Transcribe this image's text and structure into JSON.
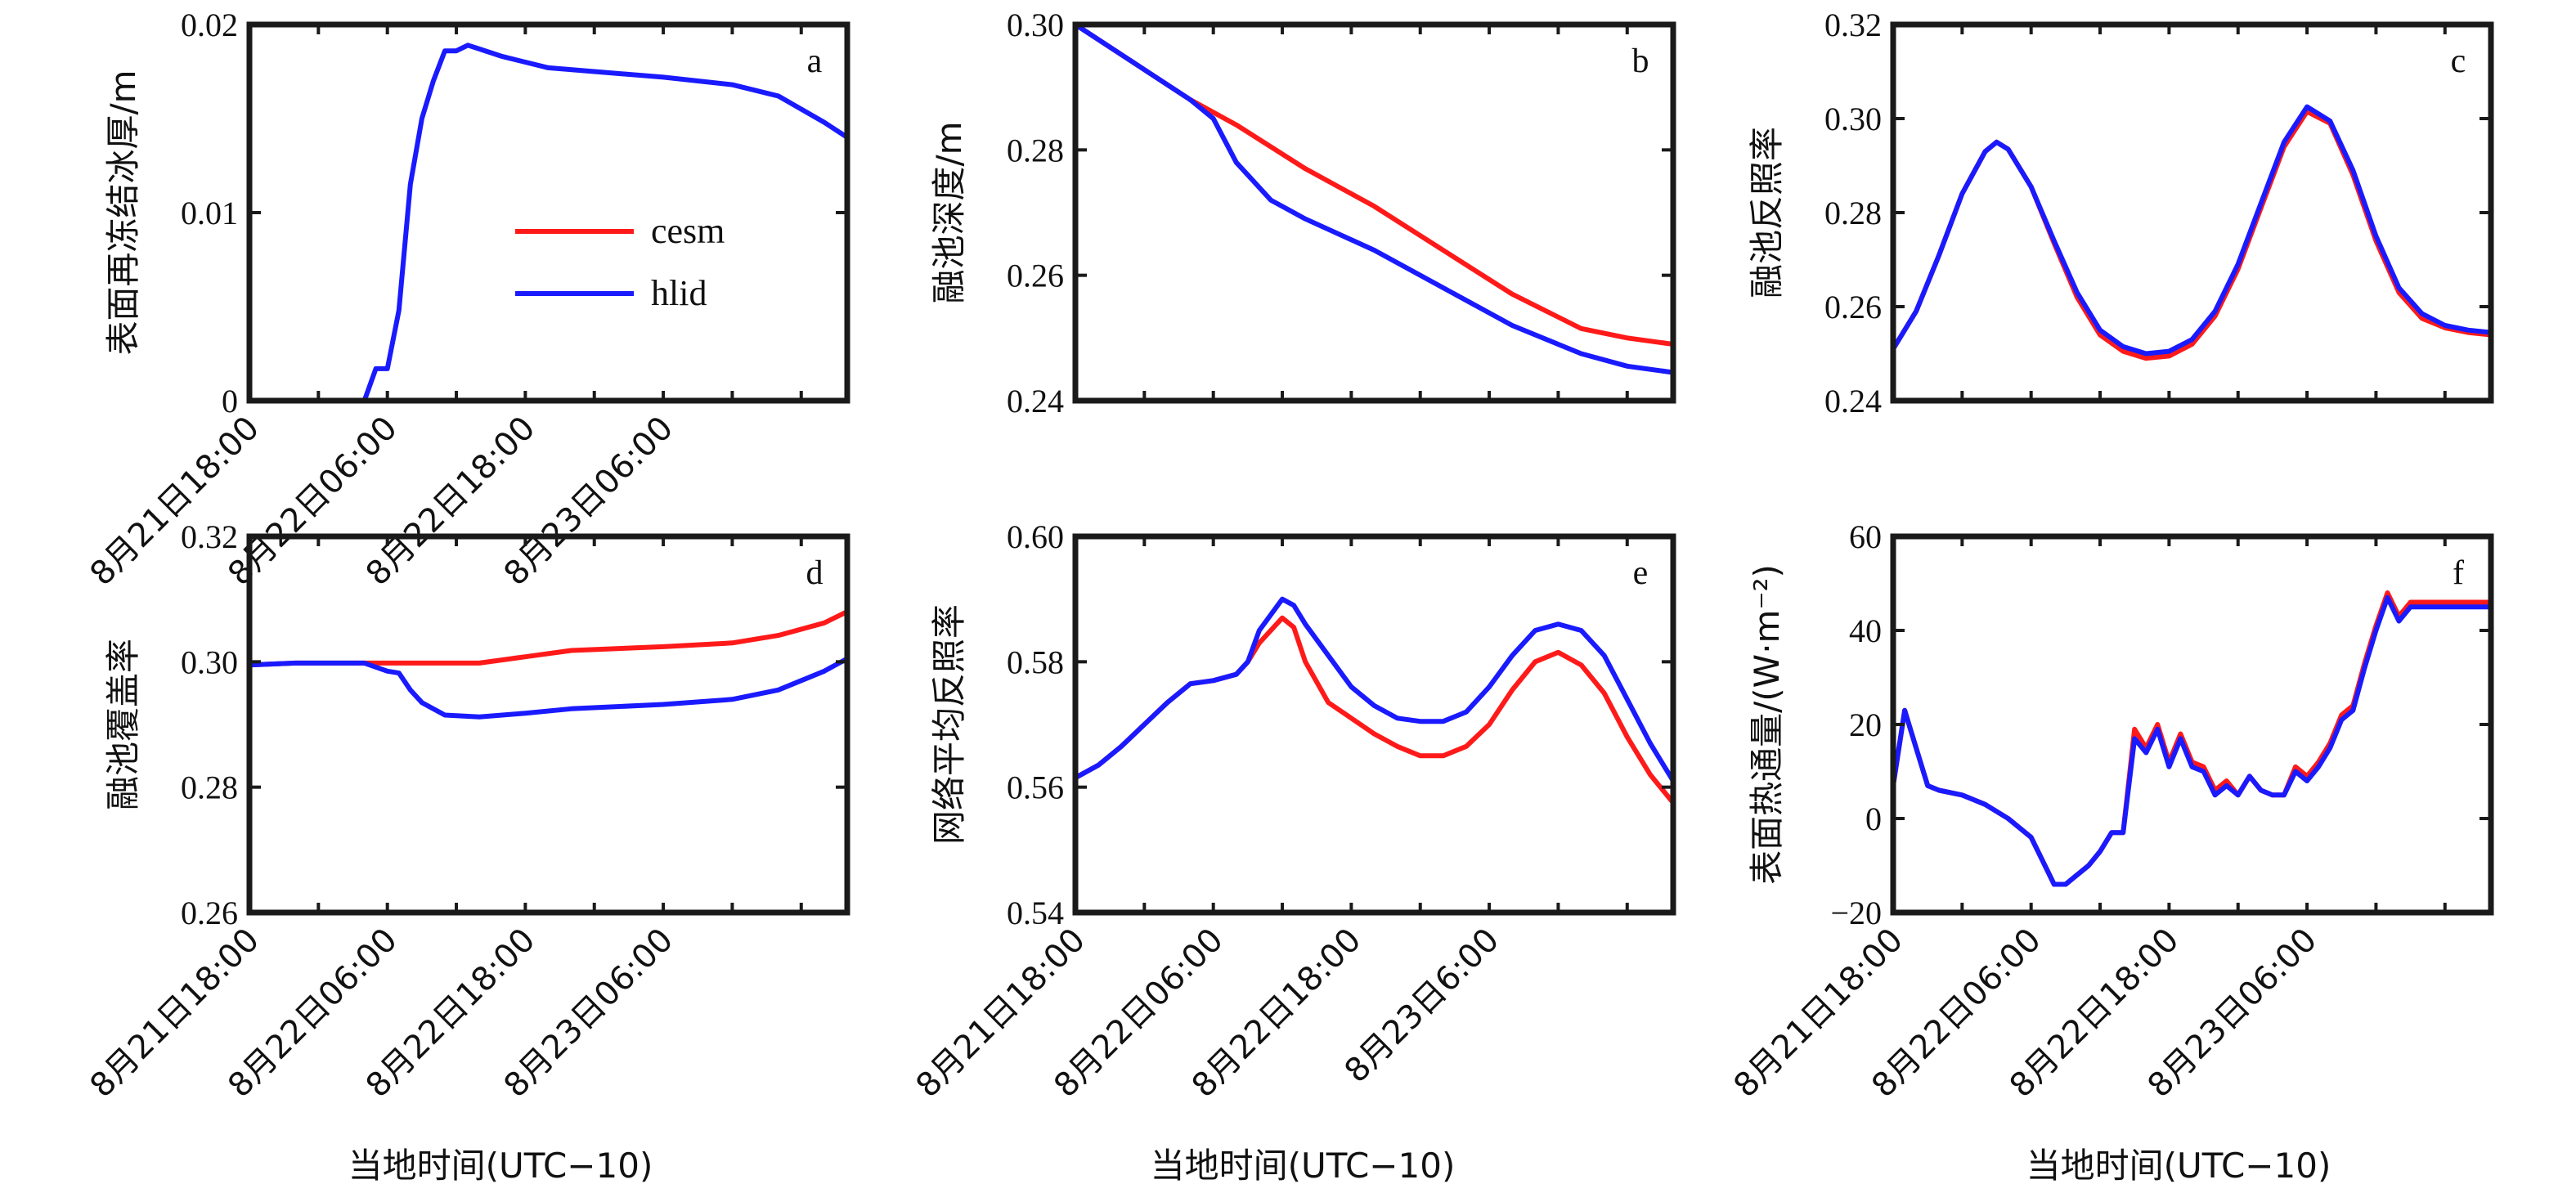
{
  "colors": {
    "cesm": "#ff1a1a",
    "hlid": "#1a1aff"
  },
  "xlabel": "当地时间(UTC−10)",
  "legend": {
    "cesm": "cesm",
    "hlid": "hlid"
  },
  "chart_data": [
    {
      "type": "line",
      "panel": "a",
      "ylabel": "表面再冻结冰厚/m",
      "ylim": [
        0,
        0.02
      ],
      "yticks": [
        "0",
        "0.01",
        "0.02"
      ],
      "ytick_values": [
        0,
        0.01,
        0.02
      ],
      "xlim": [
        0,
        52
      ],
      "xtick_values": [
        0,
        12,
        24,
        36
      ],
      "xticks": [
        "8月21日18:00",
        "8月22日06:00",
        "8月22日18:00",
        "8月23日06:00"
      ],
      "legend": true,
      "series": [
        {
          "name": "cesm",
          "x": [
            0,
            52
          ],
          "y": [
            0,
            0
          ]
        },
        {
          "name": "hlid",
          "x": [
            0,
            10,
            11,
            12,
            13,
            14,
            15,
            16,
            17,
            18,
            19,
            20,
            22,
            26,
            30,
            36,
            42,
            46,
            48,
            50,
            52
          ],
          "y": [
            0,
            0,
            0.0017,
            0.0017,
            0.0048,
            0.0115,
            0.015,
            0.017,
            0.0186,
            0.0186,
            0.0189,
            0.0187,
            0.0183,
            0.0177,
            0.0175,
            0.0172,
            0.0168,
            0.0162,
            0.0155,
            0.0148,
            0.014
          ]
        }
      ]
    },
    {
      "type": "line",
      "panel": "b",
      "ylabel": "融池深度/m",
      "ylim": [
        0.24,
        0.3
      ],
      "yticks": [
        "0.24",
        "0.26",
        "0.28",
        "0.30"
      ],
      "ytick_values": [
        0.24,
        0.26,
        0.28,
        0.3
      ],
      "xlim": [
        0,
        52
      ],
      "series": [
        {
          "name": "cesm",
          "x": [
            0,
            5,
            10,
            14,
            20,
            26,
            32,
            38,
            44,
            48,
            52
          ],
          "y": [
            0.3,
            0.294,
            0.288,
            0.284,
            0.277,
            0.271,
            0.264,
            0.257,
            0.2515,
            0.25,
            0.249
          ]
        },
        {
          "name": "hlid",
          "x": [
            0,
            5,
            10,
            12,
            14,
            17,
            20,
            26,
            32,
            38,
            44,
            48,
            52
          ],
          "y": [
            0.3,
            0.294,
            0.288,
            0.285,
            0.278,
            0.272,
            0.269,
            0.264,
            0.258,
            0.252,
            0.2475,
            0.2455,
            0.2445
          ]
        }
      ]
    },
    {
      "type": "line",
      "panel": "c",
      "ylabel": "融池反照率",
      "ylim": [
        0.24,
        0.32
      ],
      "yticks": [
        "0.24",
        "0.26",
        "0.28",
        "0.30",
        "0.32"
      ],
      "ytick_values": [
        0.24,
        0.26,
        0.28,
        0.3,
        0.32
      ],
      "xlim": [
        0,
        52
      ],
      "series": [
        {
          "name": "cesm",
          "x": [
            0,
            2,
            4,
            6,
            8,
            9,
            10,
            12,
            14,
            16,
            18,
            20,
            22,
            24,
            26,
            28,
            30,
            32,
            34,
            36,
            38,
            40,
            42,
            44,
            46,
            48,
            50,
            52
          ],
          "y": [
            0.251,
            0.259,
            0.271,
            0.284,
            0.293,
            0.295,
            0.2935,
            0.2855,
            0.2735,
            0.262,
            0.254,
            0.2505,
            0.249,
            0.2495,
            0.252,
            0.258,
            0.268,
            0.281,
            0.294,
            0.3015,
            0.299,
            0.288,
            0.274,
            0.263,
            0.2575,
            0.2555,
            0.2545,
            0.254
          ]
        },
        {
          "name": "hlid",
          "x": [
            0,
            2,
            4,
            6,
            8,
            9,
            10,
            12,
            14,
            16,
            18,
            20,
            22,
            24,
            26,
            28,
            30,
            32,
            34,
            36,
            38,
            40,
            42,
            44,
            46,
            48,
            50,
            52
          ],
          "y": [
            0.251,
            0.259,
            0.271,
            0.284,
            0.293,
            0.295,
            0.2935,
            0.2855,
            0.274,
            0.263,
            0.255,
            0.2515,
            0.25,
            0.2505,
            0.253,
            0.259,
            0.269,
            0.282,
            0.295,
            0.3025,
            0.2995,
            0.289,
            0.275,
            0.264,
            0.2585,
            0.256,
            0.255,
            0.2545
          ]
        }
      ]
    },
    {
      "type": "line",
      "panel": "d",
      "ylabel": "融池覆盖率",
      "ylim": [
        0.26,
        0.32
      ],
      "yticks": [
        "0.26",
        "0.28",
        "0.30",
        "0.32"
      ],
      "ytick_values": [
        0.26,
        0.28,
        0.3,
        0.32
      ],
      "xlim": [
        0,
        52
      ],
      "xtick_values": [
        0,
        12,
        24,
        36
      ],
      "xticks": [
        "8月21日18:00",
        "8月22日06:00",
        "8月22日18:00",
        "8月23日06:00"
      ],
      "series": [
        {
          "name": "cesm",
          "x": [
            0,
            4,
            10,
            16,
            20,
            24,
            28,
            36,
            42,
            46,
            50,
            52
          ],
          "y": [
            0.2995,
            0.2998,
            0.2998,
            0.2998,
            0.2998,
            0.3008,
            0.3018,
            0.3024,
            0.303,
            0.3042,
            0.3062,
            0.308
          ]
        },
        {
          "name": "hlid",
          "x": [
            0,
            4,
            10,
            12,
            13,
            14,
            15,
            17,
            20,
            24,
            28,
            36,
            42,
            46,
            50,
            52
          ],
          "y": [
            0.2995,
            0.2998,
            0.2998,
            0.2985,
            0.2982,
            0.2955,
            0.2935,
            0.2915,
            0.2912,
            0.2918,
            0.2925,
            0.2932,
            0.294,
            0.2955,
            0.2985,
            0.3005
          ]
        }
      ]
    },
    {
      "type": "line",
      "panel": "e",
      "ylabel": "网络平均反照率",
      "ylim": [
        0.54,
        0.6
      ],
      "yticks": [
        "0.54",
        "0.56",
        "0.58",
        "0.60"
      ],
      "ytick_values": [
        0.54,
        0.56,
        0.58,
        0.6
      ],
      "xlim": [
        0,
        52
      ],
      "xtick_values": [
        0,
        12,
        24,
        36
      ],
      "xticks": [
        "8月21日18:00",
        "8月22日06:00",
        "8月22日18:00",
        "8月23日6:00"
      ],
      "series": [
        {
          "name": "cesm",
          "x": [
            0,
            2,
            4,
            6,
            8,
            10,
            12,
            14,
            15,
            16,
            18,
            19,
            20,
            22,
            24,
            26,
            28,
            30,
            32,
            34,
            36,
            38,
            40,
            42,
            44,
            46,
            48,
            50,
            52
          ],
          "y": [
            0.5615,
            0.5635,
            0.5665,
            0.57,
            0.5735,
            0.5765,
            0.577,
            0.578,
            0.58,
            0.583,
            0.587,
            0.5855,
            0.58,
            0.5735,
            0.571,
            0.5685,
            0.5665,
            0.565,
            0.565,
            0.5665,
            0.57,
            0.5755,
            0.58,
            0.5815,
            0.5795,
            0.575,
            0.568,
            0.562,
            0.5575
          ]
        },
        {
          "name": "hlid",
          "x": [
            0,
            2,
            4,
            6,
            8,
            10,
            12,
            14,
            15,
            16,
            18,
            19,
            20,
            22,
            24,
            26,
            28,
            30,
            32,
            34,
            36,
            38,
            40,
            42,
            44,
            46,
            48,
            50,
            52
          ],
          "y": [
            0.5615,
            0.5635,
            0.5665,
            0.57,
            0.5735,
            0.5765,
            0.577,
            0.578,
            0.58,
            0.585,
            0.59,
            0.589,
            0.586,
            0.581,
            0.576,
            0.573,
            0.571,
            0.5705,
            0.5705,
            0.572,
            0.576,
            0.581,
            0.585,
            0.586,
            0.585,
            0.581,
            0.574,
            0.567,
            0.561
          ]
        }
      ]
    },
    {
      "type": "line",
      "panel": "f",
      "ylabel": "表面热通量/(W·m⁻²)",
      "ylim": [
        -20,
        60
      ],
      "yticks": [
        "−20",
        "0",
        "20",
        "40",
        "60"
      ],
      "ytick_values": [
        -20,
        0,
        20,
        40,
        60
      ],
      "xlim": [
        0,
        52
      ],
      "xtick_values": [
        0,
        12,
        24,
        36
      ],
      "xticks": [
        "8月21日18:00",
        "8月22日06:00",
        "8月22日18:00",
        "8月23日06:00"
      ],
      "series": [
        {
          "name": "cesm",
          "x": [
            0,
            1,
            2,
            3,
            4,
            6,
            8,
            10,
            12,
            13,
            14,
            15,
            16,
            17,
            18,
            19,
            20,
            21,
            22,
            23,
            24,
            25,
            26,
            27,
            28,
            29,
            30,
            31,
            32,
            33,
            34,
            35,
            36,
            37,
            38,
            39,
            40,
            41,
            42,
            43,
            44,
            45,
            46,
            47,
            48,
            49,
            50,
            51,
            52
          ],
          "y": [
            7,
            23,
            15,
            7,
            6,
            5,
            3,
            0,
            -4,
            -9,
            -14,
            -14,
            -12,
            -10,
            -7,
            -3,
            -3,
            19,
            15,
            20,
            12,
            18,
            12,
            11,
            6,
            8,
            5,
            9,
            6,
            5,
            5,
            11,
            9,
            12,
            16,
            22,
            24,
            33,
            41,
            48,
            43,
            46,
            46,
            46,
            46,
            46,
            46,
            46,
            46
          ]
        },
        {
          "name": "hlid",
          "x": [
            0,
            1,
            2,
            3,
            4,
            6,
            8,
            10,
            12,
            13,
            14,
            15,
            16,
            17,
            18,
            19,
            20,
            21,
            22,
            23,
            24,
            25,
            26,
            27,
            28,
            29,
            30,
            31,
            32,
            33,
            34,
            35,
            36,
            37,
            38,
            39,
            40,
            41,
            42,
            43,
            44,
            45,
            46,
            47,
            48,
            49,
            50,
            51,
            52
          ],
          "y": [
            7,
            23,
            15,
            7,
            6,
            5,
            3,
            0,
            -4,
            -9,
            -14,
            -14,
            -12,
            -10,
            -7,
            -3,
            -3,
            17,
            14,
            19,
            11,
            17,
            11,
            10,
            5,
            7,
            5,
            9,
            6,
            5,
            5,
            10,
            8,
            11,
            15,
            21,
            23,
            32,
            40,
            47,
            42,
            45,
            45,
            45,
            45,
            45,
            45,
            45,
            45
          ]
        }
      ]
    }
  ]
}
